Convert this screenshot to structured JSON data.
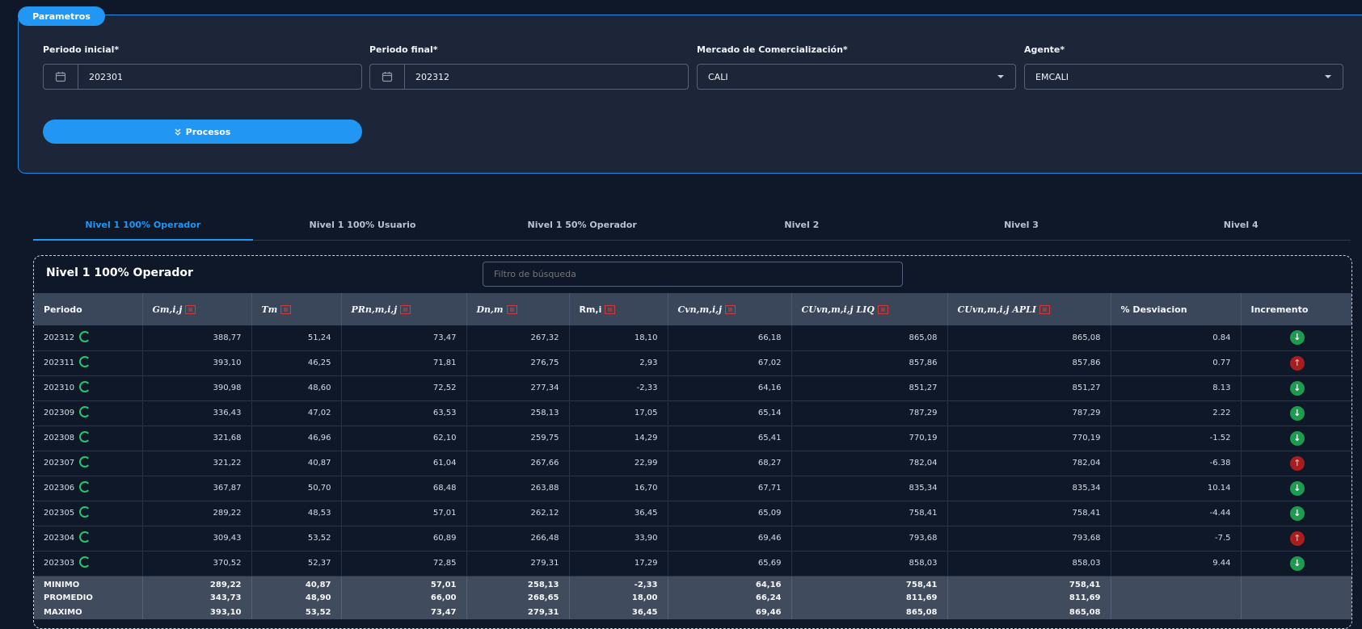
{
  "params": {
    "tab_label": "Parametros",
    "periodo_inicial": {
      "label": "Periodo inicial*",
      "value": "202301"
    },
    "periodo_final": {
      "label": "Periodo final*",
      "value": "202312"
    },
    "mercado": {
      "label": "Mercado de Comercialización*",
      "value": "CALI"
    },
    "agente": {
      "label": "Agente*",
      "value": "EMCALI"
    },
    "procesos_label": "Procesos"
  },
  "tabs": [
    "Nivel 1 100% Operador",
    "Nivel 1 100% Usuario",
    "Nivel 1 50% Operador",
    "Nivel 2",
    "Nivel 3",
    "Nivel 4"
  ],
  "card": {
    "title": "Nivel 1 100% Operador",
    "filter_placeholder": "Filtro de búsqueda"
  },
  "table": {
    "headers": [
      "Periodo",
      "Gm,i,j",
      "Tm",
      "PRn,m,i,j",
      "Dn,m",
      "Rm,i",
      "Cvn,m,i,j",
      "CUvn,m,i,j LIQ",
      "CUvn,m,i,j APLI",
      "% Desviacion",
      "Incremento"
    ],
    "rows": [
      {
        "periodo": "202312",
        "g": "388,77",
        "t": "51,24",
        "pr": "73,47",
        "d": "267,32",
        "r": "18,10",
        "cv": "66,18",
        "liq": "865,08",
        "apli": "865,08",
        "desv": "0.84",
        "inc": "down"
      },
      {
        "periodo": "202311",
        "g": "393,10",
        "t": "46,25",
        "pr": "71,81",
        "d": "276,75",
        "r": "2,93",
        "cv": "67,02",
        "liq": "857,86",
        "apli": "857,86",
        "desv": "0.77",
        "inc": "up"
      },
      {
        "periodo": "202310",
        "g": "390,98",
        "t": "48,60",
        "pr": "72,52",
        "d": "277,34",
        "r": "-2,33",
        "cv": "64,16",
        "liq": "851,27",
        "apli": "851,27",
        "desv": "8.13",
        "inc": "down"
      },
      {
        "periodo": "202309",
        "g": "336,43",
        "t": "47,02",
        "pr": "63,53",
        "d": "258,13",
        "r": "17,05",
        "cv": "65,14",
        "liq": "787,29",
        "apli": "787,29",
        "desv": "2.22",
        "inc": "down"
      },
      {
        "periodo": "202308",
        "g": "321,68",
        "t": "46,96",
        "pr": "62,10",
        "d": "259,75",
        "r": "14,29",
        "cv": "65,41",
        "liq": "770,19",
        "apli": "770,19",
        "desv": "-1.52",
        "inc": "down"
      },
      {
        "periodo": "202307",
        "g": "321,22",
        "t": "40,87",
        "pr": "61,04",
        "d": "267,66",
        "r": "22,99",
        "cv": "68,27",
        "liq": "782,04",
        "apli": "782,04",
        "desv": "-6.38",
        "inc": "up"
      },
      {
        "periodo": "202306",
        "g": "367,87",
        "t": "50,70",
        "pr": "68,48",
        "d": "263,88",
        "r": "16,70",
        "cv": "67,71",
        "liq": "835,34",
        "apli": "835,34",
        "desv": "10.14",
        "inc": "down"
      },
      {
        "periodo": "202305",
        "g": "289,22",
        "t": "48,53",
        "pr": "57,01",
        "d": "262,12",
        "r": "36,45",
        "cv": "65,09",
        "liq": "758,41",
        "apli": "758,41",
        "desv": "-4.44",
        "inc": "down"
      },
      {
        "periodo": "202304",
        "g": "309,43",
        "t": "53,52",
        "pr": "60,89",
        "d": "266,48",
        "r": "33,90",
        "cv": "69,46",
        "liq": "793,68",
        "apli": "793,68",
        "desv": "-7.5",
        "inc": "up"
      },
      {
        "periodo": "202303",
        "g": "370,52",
        "t": "52,37",
        "pr": "72,85",
        "d": "279,31",
        "r": "17,29",
        "cv": "65,69",
        "liq": "858,03",
        "apli": "858,03",
        "desv": "9.44",
        "inc": "down"
      }
    ],
    "stats": [
      {
        "label": "MINIMO",
        "g": "289,22",
        "t": "40,87",
        "pr": "57,01",
        "d": "258,13",
        "r": "-2,33",
        "cv": "64,16",
        "liq": "758,41",
        "apli": "758,41"
      },
      {
        "label": "PROMEDIO",
        "g": "343,73",
        "t": "48,90",
        "pr": "66,00",
        "d": "268,65",
        "r": "18,00",
        "cv": "66,24",
        "liq": "811,69",
        "apli": "811,69"
      },
      {
        "label": "MAXIMO",
        "g": "393,10",
        "t": "53,52",
        "pr": "73,47",
        "d": "279,31",
        "r": "36,45",
        "cv": "69,46",
        "liq": "865,08",
        "apli": "865,08"
      }
    ]
  },
  "colors": {
    "accent": "#2196f3",
    "panel": "#1c2638",
    "background": "#0f1829",
    "increase": "#a81e1e",
    "decrease": "#1d9c4f"
  }
}
